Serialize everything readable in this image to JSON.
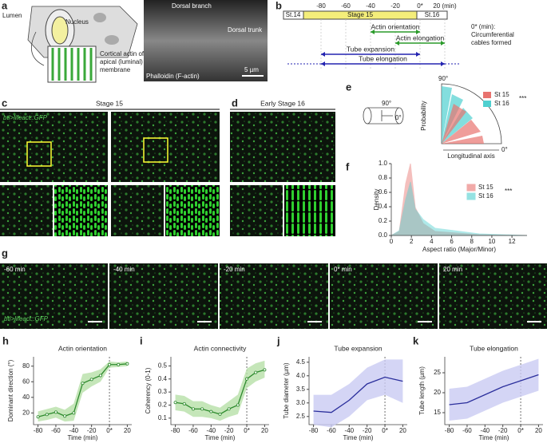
{
  "panel_labels": [
    "a",
    "b",
    "c",
    "d",
    "e",
    "f",
    "g",
    "h",
    "i",
    "j",
    "k"
  ],
  "a": {
    "lumen": "Lumen",
    "nucleus": "Nucleus",
    "cortical": [
      "Cortical actin of",
      "apical (luminal)",
      "membrane"
    ],
    "dorsal_branch": "Dorsal branch",
    "dorsal_trunk": "Dorsal trunk",
    "stain": "Phalloidin (F-actin)",
    "scale": "5 µm"
  },
  "b": {
    "ticks": [
      -80,
      -60,
      -40,
      -20,
      {
        "value": 0,
        "label": "0*"
      },
      {
        "value": 20,
        "label": "20 (min)"
      }
    ],
    "stages": [
      "St.14",
      "Stage 15",
      "St.16"
    ],
    "note": [
      "0* (min):",
      "Circumferential",
      "cables formed"
    ],
    "bars": [
      {
        "name": "Actin orientation",
        "start": -40,
        "end": 0,
        "color": "#2a9a2a"
      },
      {
        "name": "Actin elongation",
        "start": -20,
        "end": 20,
        "color": "#2a9a2a"
      },
      {
        "name": "Tube expansion",
        "start": -80,
        "end": 0,
        "color": "#2323b0"
      },
      {
        "name": "Tube elongation",
        "start": -80,
        "end": 20,
        "color": "#2323b0"
      }
    ]
  },
  "c": {
    "title": "Stage 15",
    "label": "btl>lifeact::GFP"
  },
  "d": {
    "title": "Early Stage 16"
  },
  "e": {
    "legend": [
      "St 15",
      "St 16"
    ],
    "colors": [
      "#e8736f",
      "#4fd0d0"
    ],
    "sig": "***",
    "ylabel": "Probability",
    "xlabel": "Longitudinal axis",
    "top": "90°",
    "right": "0°",
    "schematic": [
      "90°",
      "0°"
    ]
  },
  "f": {
    "legend": [
      "St 15",
      "St 16"
    ],
    "colors": [
      "#e8736f",
      "#4fd0d0"
    ],
    "sig": "***",
    "ylabel": "Density",
    "xlabel": "Aspect ratio (Major/Minor)",
    "xlim": [
      0,
      13.5
    ],
    "ylim": [
      0,
      1.0
    ],
    "xticks": [
      0,
      2,
      4,
      6,
      8,
      10,
      12
    ],
    "yticks": [
      {
        "value": 0,
        "label": "0.0"
      },
      0.2,
      0.4,
      0.6,
      0.8,
      {
        "value": 1.0,
        "label": "1.0"
      }
    ]
  },
  "g": {
    "times": [
      "-60 min",
      "-40 min",
      "-20 min",
      "0* min",
      "20 min"
    ],
    "label": "btl>lifeact::GFP"
  },
  "chart_data": [
    {
      "type": "line",
      "title": "Actin orientation",
      "xlabel": "Time (min)",
      "ylabel": "Dominant direction (°)",
      "x": [
        -80,
        -70,
        -60,
        -50,
        -40,
        -30,
        -20,
        -10,
        0,
        10,
        20
      ],
      "values": [
        15,
        18,
        21,
        16,
        20,
        58,
        63,
        68,
        82,
        82,
        83
      ],
      "upper": [
        22,
        25,
        28,
        24,
        32,
        70,
        72,
        76,
        86,
        85,
        86
      ],
      "lower": [
        9,
        11,
        14,
        9,
        10,
        46,
        54,
        60,
        78,
        79,
        80
      ],
      "color": "#2e8b2e",
      "band_color": "#b6e0a8",
      "xlim": [
        -85,
        25
      ],
      "ylim": [
        5,
        92
      ],
      "xticks": [
        -80,
        -60,
        -40,
        -20,
        {
          "value": 0,
          "label": "0*"
        },
        20
      ],
      "yticks": [
        20,
        40,
        60,
        80
      ]
    },
    {
      "type": "line",
      "title": "Actin connectivity",
      "xlabel": "Time (min)",
      "ylabel": "Coherency (0-1)",
      "x": [
        -80,
        -70,
        -60,
        -50,
        -40,
        -30,
        -20,
        -10,
        0,
        10,
        20
      ],
      "values": [
        0.22,
        0.21,
        0.17,
        0.17,
        0.15,
        0.13,
        0.17,
        0.2,
        0.4,
        0.45,
        0.47
      ],
      "upper": [
        0.28,
        0.27,
        0.23,
        0.23,
        0.2,
        0.18,
        0.23,
        0.28,
        0.48,
        0.52,
        0.54
      ],
      "lower": [
        0.16,
        0.15,
        0.11,
        0.11,
        0.1,
        0.08,
        0.11,
        0.13,
        0.33,
        0.38,
        0.41
      ],
      "color": "#2e8b2e",
      "band_color": "#b6e0a8",
      "xlim": [
        -85,
        25
      ],
      "ylim": [
        0.05,
        0.57
      ],
      "xticks": [
        -80,
        -60,
        -40,
        -20,
        {
          "value": 0,
          "label": "0*"
        },
        20
      ],
      "yticks": [
        0.1,
        0.2,
        0.3,
        0.4,
        0.5
      ]
    },
    {
      "type": "line",
      "title": "Tube expansion",
      "xlabel": "Time (min)",
      "ylabel": "Tube diameter (µm)",
      "x": [
        -80,
        -60,
        -40,
        -20,
        0,
        20
      ],
      "values": [
        2.7,
        2.65,
        3.1,
        3.7,
        3.95,
        3.8
      ],
      "upper": [
        3.3,
        3.3,
        3.7,
        4.3,
        4.6,
        4.6
      ],
      "lower": [
        2.2,
        2.1,
        2.5,
        3.1,
        3.3,
        3.0
      ],
      "color": "#2b2f9c",
      "band_color": "#c9cbf2",
      "xlim": [
        -85,
        25
      ],
      "ylim": [
        2.2,
        4.7
      ],
      "xticks": [
        -80,
        -60,
        -40,
        -20,
        {
          "value": 0,
          "label": "0*"
        },
        20
      ],
      "yticks": [
        {
          "value": 2.5,
          "label": "2.5"
        },
        {
          "value": 3.0,
          "label": "3.0"
        },
        {
          "value": 3.5,
          "label": "3.5"
        },
        {
          "value": 4.0,
          "label": "4.0"
        },
        {
          "value": 4.5,
          "label": "4.5"
        }
      ]
    },
    {
      "type": "line",
      "title": "Tube elongation",
      "xlabel": "Time (min)",
      "ylabel": "Tube length (µm)",
      "x": [
        -80,
        -60,
        -40,
        -20,
        0,
        20
      ],
      "values": [
        17,
        17.5,
        19.5,
        21.5,
        23,
        24.5
      ],
      "upper": [
        21,
        21.5,
        23.5,
        25.5,
        27,
        28.5
      ],
      "lower": [
        13,
        13.5,
        15.5,
        17.5,
        19,
        20.5
      ],
      "color": "#2b2f9c",
      "band_color": "#c9cbf2",
      "xlim": [
        -85,
        25
      ],
      "ylim": [
        12,
        29
      ],
      "xticks": [
        -80,
        -60,
        -40,
        -20,
        {
          "value": 0,
          "label": "0*"
        },
        20
      ],
      "yticks": [
        15,
        20,
        25
      ]
    }
  ]
}
